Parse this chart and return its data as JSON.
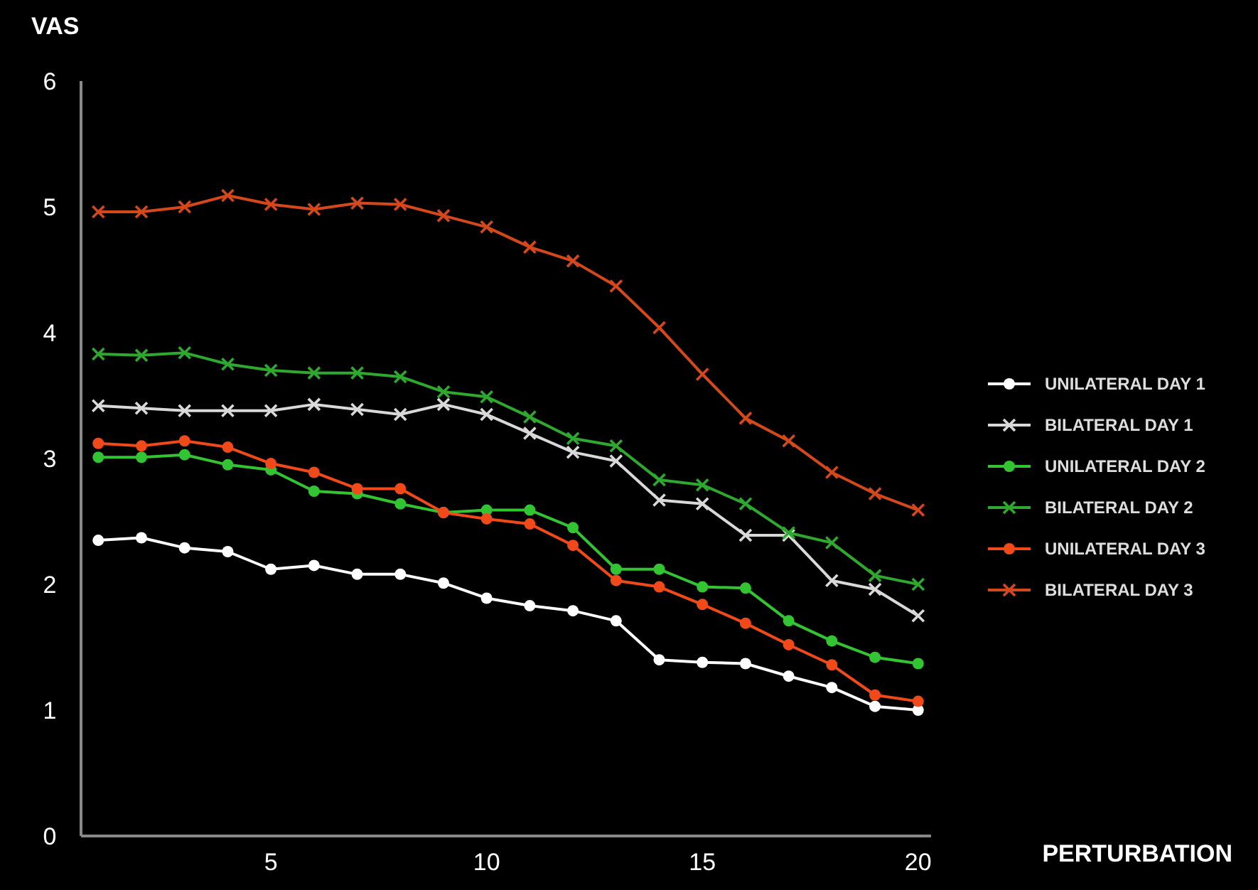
{
  "chart_data": {
    "type": "line",
    "xlabel": "PERTURBATION",
    "ylabel": "VAS",
    "x": [
      1,
      2,
      3,
      4,
      5,
      6,
      7,
      8,
      9,
      10,
      11,
      12,
      13,
      14,
      15,
      16,
      17,
      18,
      19,
      20
    ],
    "xlim": [
      0.6,
      20.3
    ],
    "xticks": [
      5,
      10,
      15,
      20
    ],
    "ylim": [
      0,
      6
    ],
    "yticks": [
      0,
      1,
      2,
      3,
      4,
      5,
      6
    ],
    "grid": false,
    "legend": "right",
    "series": [
      {
        "name": "UNILATERAL DAY 1",
        "color": "#ffffff",
        "marker": "circle",
        "values": [
          2.35,
          2.37,
          2.29,
          2.26,
          2.12,
          2.15,
          2.08,
          2.08,
          2.01,
          1.89,
          1.83,
          1.79,
          1.71,
          1.4,
          1.38,
          1.37,
          1.27,
          1.18,
          1.03,
          1.0
        ]
      },
      {
        "name": "BILATERAL DAY 1",
        "color": "#d9d9d9",
        "marker": "cross",
        "values": [
          3.42,
          3.4,
          3.38,
          3.38,
          3.38,
          3.43,
          3.39,
          3.35,
          3.43,
          3.35,
          3.2,
          3.05,
          2.98,
          2.67,
          2.64,
          2.39,
          2.39,
          2.03,
          1.96,
          1.75
        ]
      },
      {
        "name": "UNILATERAL DAY 2",
        "color": "#33c433",
        "marker": "circle",
        "values": [
          3.01,
          3.01,
          3.03,
          2.95,
          2.91,
          2.74,
          2.72,
          2.64,
          2.57,
          2.59,
          2.59,
          2.45,
          2.12,
          2.12,
          1.98,
          1.97,
          1.71,
          1.55,
          1.42,
          1.37
        ]
      },
      {
        "name": "BILATERAL DAY 2",
        "color": "#2ea82e",
        "marker": "cross",
        "values": [
          3.83,
          3.82,
          3.84,
          3.75,
          3.7,
          3.68,
          3.68,
          3.65,
          3.53,
          3.49,
          3.33,
          3.16,
          3.1,
          2.83,
          2.79,
          2.64,
          2.41,
          2.33,
          2.07,
          2.0
        ]
      },
      {
        "name": "UNILATERAL DAY 3",
        "color": "#f04a1a",
        "marker": "circle",
        "values": [
          3.12,
          3.1,
          3.14,
          3.09,
          2.96,
          2.89,
          2.76,
          2.76,
          2.57,
          2.52,
          2.48,
          2.31,
          2.03,
          1.98,
          1.84,
          1.69,
          1.52,
          1.36,
          1.12,
          1.07
        ]
      },
      {
        "name": "BILATERAL DAY 3",
        "color": "#d4481c",
        "marker": "cross",
        "values": [
          4.96,
          4.96,
          5.0,
          5.09,
          5.02,
          4.98,
          5.03,
          5.02,
          4.93,
          4.84,
          4.68,
          4.57,
          4.37,
          4.04,
          3.67,
          3.32,
          3.14,
          2.89,
          2.72,
          2.59
        ]
      }
    ]
  }
}
